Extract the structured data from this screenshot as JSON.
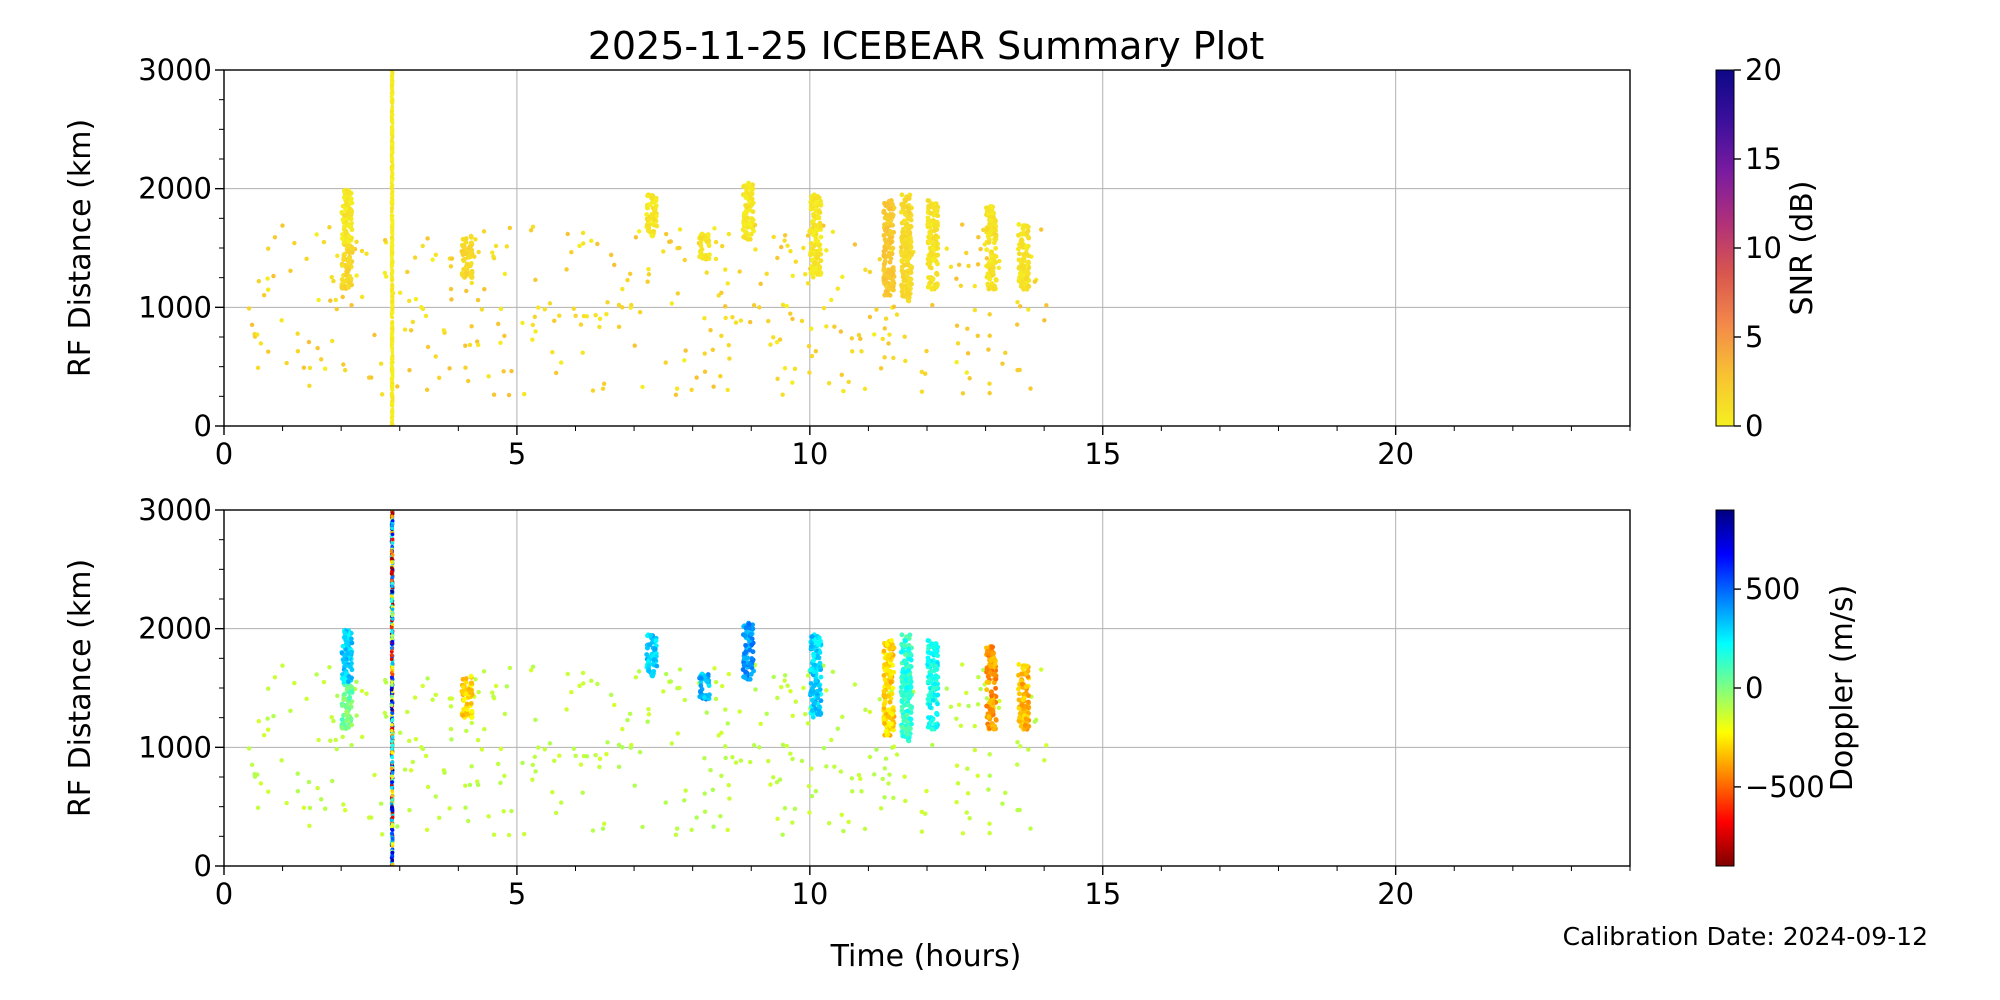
{
  "title": "2025-11-25 ICEBEAR Summary Plot",
  "footer": "Calibration Date: 2024-09-12",
  "chart_data": [
    {
      "type": "scatter",
      "panel": "top",
      "xlabel": "",
      "ylabel": "RF Distance (km)",
      "xlim": [
        0,
        24
      ],
      "ylim": [
        0,
        3000
      ],
      "xticks": [
        "0",
        "5",
        "10",
        "15",
        "20"
      ],
      "yticks": [
        "0",
        "1000",
        "2000",
        "3000"
      ],
      "grid": true,
      "color_by": "SNR (dB)",
      "colorbar": {
        "label": "SNR (dB)",
        "range": [
          0,
          20
        ],
        "ticks": [
          "0",
          "5",
          "10",
          "15",
          "20"
        ],
        "stops": [
          "#f5f020",
          "#f8c232",
          "#f3894a",
          "#d9564e",
          "#b0307a",
          "#7a1ba0",
          "#3b0f9c",
          "#0d0887"
        ]
      },
      "clusters": [
        {
          "x": 2.1,
          "y": [
            1150,
            1550
          ],
          "v": 1.5
        },
        {
          "x": 2.1,
          "y": [
            1550,
            2000
          ],
          "v": 0.6
        },
        {
          "x": 2.87,
          "y": [
            0,
            3000
          ],
          "v": 0.3
        },
        {
          "x": 4.15,
          "y": [
            1250,
            1600
          ],
          "v": 1.5
        },
        {
          "x": 7.3,
          "y": [
            1600,
            1950
          ],
          "v": 0.6
        },
        {
          "x": 8.2,
          "y": [
            1400,
            1620
          ],
          "v": 0.8
        },
        {
          "x": 8.95,
          "y": [
            1550,
            2050
          ],
          "v": 0.6
        },
        {
          "x": 10.1,
          "y": [
            1250,
            1950
          ],
          "v": 0.6
        },
        {
          "x": 11.35,
          "y": [
            1100,
            1900
          ],
          "v": 2.5
        },
        {
          "x": 11.65,
          "y": [
            1050,
            1950
          ],
          "v": 1.4
        },
        {
          "x": 12.1,
          "y": [
            1150,
            1900
          ],
          "v": 0.8
        },
        {
          "x": 13.1,
          "y": [
            1150,
            1850
          ],
          "v": 0.8
        },
        {
          "x": 13.65,
          "y": [
            1150,
            1700
          ],
          "v": 0.8
        }
      ],
      "scatter": {
        "xrange": [
          0.4,
          14.1
        ],
        "yrange": [
          250,
          1700
        ],
        "count": 380,
        "v_range": [
          0,
          3
        ]
      }
    },
    {
      "type": "scatter",
      "panel": "bottom",
      "xlabel": "Time (hours)",
      "ylabel": "RF Distance (km)",
      "xlim": [
        0,
        24
      ],
      "ylim": [
        0,
        3000
      ],
      "xticks": [
        "0",
        "5",
        "10",
        "15",
        "20"
      ],
      "yticks": [
        "0",
        "1000",
        "2000",
        "3000"
      ],
      "grid": true,
      "color_by": "Doppler (m/s)",
      "colorbar": {
        "label": "Doppler (m/s)",
        "range": [
          -900,
          900
        ],
        "ticks": [
          "−500",
          "0",
          "500"
        ],
        "tick_values": [
          -500,
          0,
          500
        ],
        "stops": [
          "#800000",
          "#ff0000",
          "#ff8000",
          "#ffff00",
          "#80ff80",
          "#00ffff",
          "#0080ff",
          "#0000ff",
          "#000080"
        ]
      },
      "clusters": [
        {
          "x": 2.1,
          "y": [
            1150,
            1550
          ],
          "v": 20
        },
        {
          "x": 2.1,
          "y": [
            1550,
            2000
          ],
          "v": 300
        },
        {
          "x": 2.87,
          "y": [
            0,
            3000
          ],
          "v": 0,
          "mixed": true
        },
        {
          "x": 4.15,
          "y": [
            1250,
            1600
          ],
          "v": -300
        },
        {
          "x": 7.3,
          "y": [
            1600,
            1950
          ],
          "v": 300
        },
        {
          "x": 8.2,
          "y": [
            1400,
            1620
          ],
          "v": 350
        },
        {
          "x": 8.95,
          "y": [
            1550,
            2050
          ],
          "v": 400
        },
        {
          "x": 10.1,
          "y": [
            1250,
            1950
          ],
          "v": 300
        },
        {
          "x": 11.35,
          "y": [
            1100,
            1900
          ],
          "v": -300
        },
        {
          "x": 11.65,
          "y": [
            1050,
            1950
          ],
          "v": 150
        },
        {
          "x": 12.1,
          "y": [
            1150,
            1900
          ],
          "v": 200
        },
        {
          "x": 13.1,
          "y": [
            1150,
            1850
          ],
          "v": -400
        },
        {
          "x": 13.65,
          "y": [
            1150,
            1700
          ],
          "v": -350
        }
      ],
      "scatter": {
        "xrange": [
          0.4,
          14.1
        ],
        "yrange": [
          250,
          1700
        ],
        "count": 380,
        "v_range": [
          -150,
          -80
        ]
      }
    }
  ]
}
